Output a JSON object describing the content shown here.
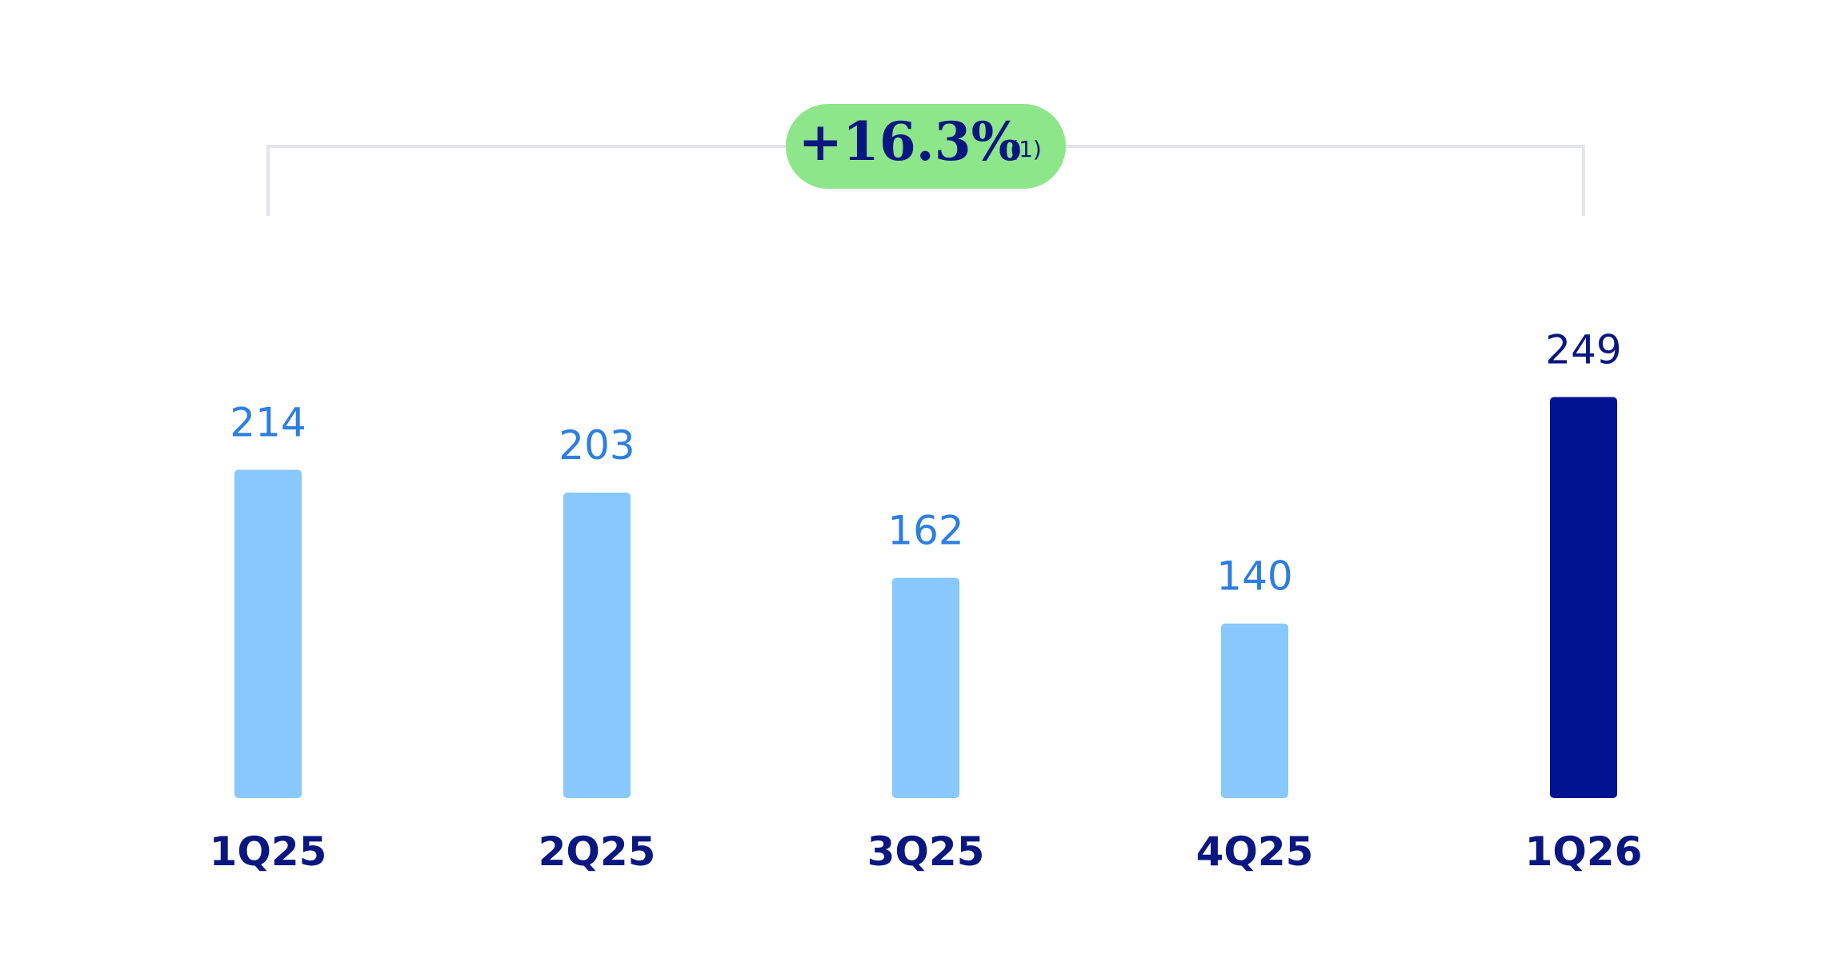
{
  "chart_data": {
    "type": "bar",
    "categories": [
      "1Q25",
      "2Q25",
      "3Q25",
      "4Q25",
      "1Q26"
    ],
    "values": [
      214,
      203,
      162,
      140,
      249
    ],
    "colors": [
      "#88c8fd",
      "#88c8fd",
      "#88c8fd",
      "#88c8fd",
      "#001391"
    ],
    "value_label_colors": [
      "#2c7ee0",
      "#2c7ee0",
      "#2c7ee0",
      "#2c7ee0",
      "#0b1780"
    ],
    "ylim": [
      56,
      300
    ],
    "annotation": {
      "text": "+16.3%",
      "note": "(1)",
      "color": "#8ee68a"
    }
  }
}
